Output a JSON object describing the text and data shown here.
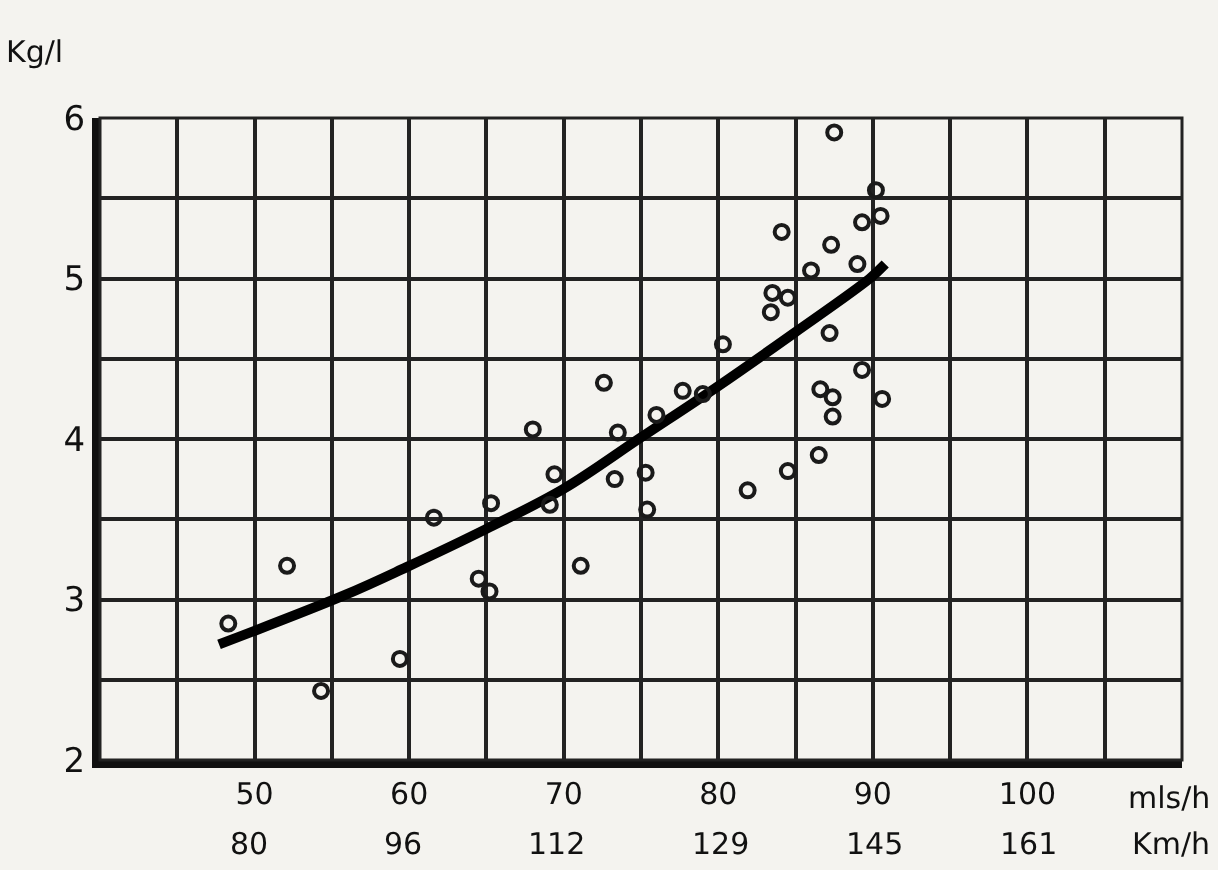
{
  "chart_data": {
    "type": "scatter",
    "ylabel": "Kg/l",
    "xlabel": "mls/h",
    "xlim": [
      40,
      110
    ],
    "xticks": [
      {
        "value": 45,
        "label": null
      },
      50,
      {
        "value": 55,
        "label": null
      },
      60,
      {
        "value": 65,
        "label": null
      },
      70,
      {
        "value": 75,
        "label": null
      },
      80,
      {
        "value": 85,
        "label": null
      },
      90,
      {
        "value": 95,
        "label": null
      },
      100,
      {
        "value": 105,
        "label": null
      }
    ],
    "x2label": "Km/h",
    "x2lim": [
      64.4,
      177
    ],
    "x2ticks": [
      80,
      96,
      112,
      129,
      145,
      161
    ],
    "ylim": [
      2,
      6
    ],
    "yticks": [
      2,
      {
        "value": 2.5,
        "label": null
      },
      3,
      {
        "value": 3.5,
        "label": null
      },
      4,
      {
        "value": 4.5,
        "label": null
      },
      5,
      {
        "value": 5.5,
        "label": null
      },
      6
    ],
    "grid": true,
    "marker": "circle",
    "series": [
      {
        "type": "scatter",
        "color": "#1a1a1a",
        "x": [
          48.3,
          52.1,
          54.3,
          59.4,
          61.6,
          64.5,
          65.2,
          65.3,
          68.0,
          69.1,
          69.4,
          71.1,
          72.6,
          73.3,
          73.5,
          75.3,
          75.4,
          76.0,
          77.7,
          79.0,
          80.3,
          81.9,
          83.5,
          83.4,
          84.1,
          84.5,
          84.5,
          86.0,
          86.5,
          86.6,
          87.3,
          87.2,
          87.4,
          87.4,
          87.5,
          89.0,
          89.3,
          89.3,
          90.2,
          90.5,
          90.6
        ],
        "values": [
          2.85,
          3.21,
          2.43,
          2.63,
          3.51,
          3.13,
          3.05,
          3.6,
          4.06,
          3.59,
          3.78,
          3.21,
          4.35,
          3.75,
          4.04,
          3.79,
          3.56,
          4.15,
          4.3,
          4.28,
          4.59,
          3.68,
          4.91,
          4.79,
          5.29,
          3.8,
          4.88,
          5.05,
          3.9,
          4.31,
          5.21,
          4.66,
          4.26,
          4.14,
          5.91,
          5.09,
          5.35,
          4.43,
          5.55,
          5.39,
          4.25
        ]
      },
      {
        "type": "line",
        "color": "#000000",
        "marker": "none",
        "x": [
          47.7,
          55.9,
          59.8,
          65.0,
          70.0,
          75.0,
          80.0,
          84.9,
          89.8,
          90.8
        ],
        "values": [
          2.72,
          3.03,
          3.2,
          3.44,
          3.69,
          4.01,
          4.33,
          4.66,
          5.0,
          5.09
        ]
      }
    ]
  }
}
